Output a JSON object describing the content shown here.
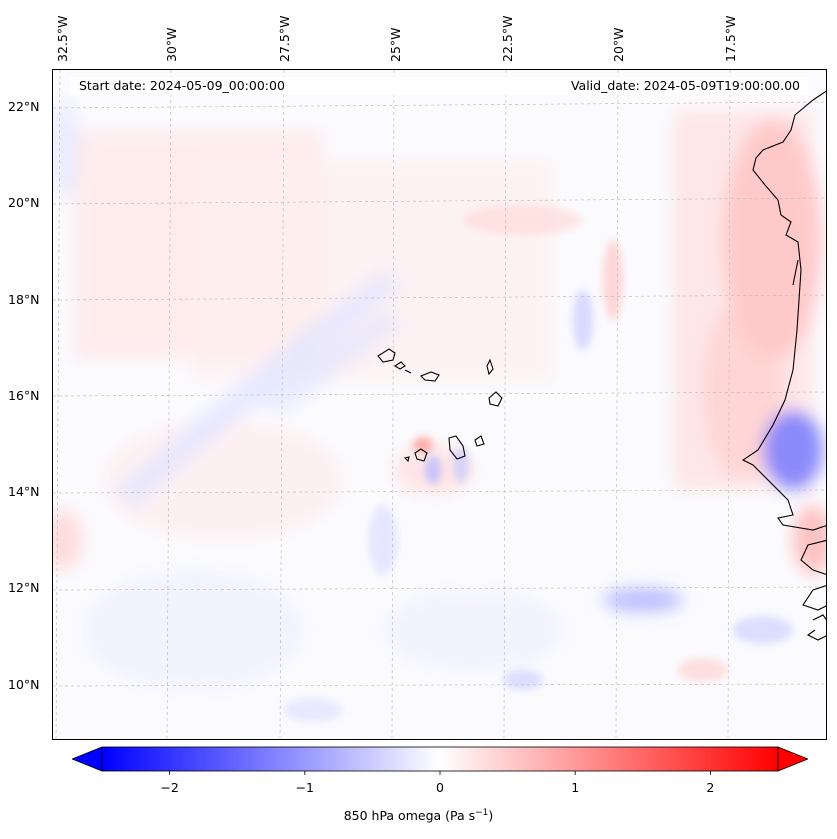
{
  "map": {
    "start_date": "Start date: 2024-05-09_00:00:00",
    "valid_date": "Valid_date: 2024-05-09T19:00:00.00",
    "lon_ticks": [
      "32.5°W",
      "30°W",
      "27.5°W",
      "25°W",
      "22.5°W",
      "20°W",
      "17.5°W"
    ],
    "lat_ticks": [
      "22°N",
      "20°N",
      "18°N",
      "16°N",
      "14°N",
      "12°N",
      "10°N"
    ],
    "extent": {
      "lon_min": -33.0,
      "lon_max": -15.5,
      "lat_min": 8.9,
      "lat_max": 22.8
    },
    "field": "850 hPa omega",
    "gridlines": true,
    "coastline_color": "#000000"
  },
  "colorbar": {
    "label": "850 hPa omega (Pa s",
    "label_sup": "−1",
    "label_end": ")",
    "ticks": [
      "−2",
      "−1",
      "0",
      "1",
      "2"
    ],
    "tick_values": [
      -2,
      -1,
      0,
      1,
      2
    ],
    "vmin": -2.5,
    "vmax": 2.5,
    "cmap": "bwr",
    "extend": "both",
    "low_color": "#0000ff",
    "mid_color": "#ffffff",
    "high_color": "#ff0000"
  }
}
